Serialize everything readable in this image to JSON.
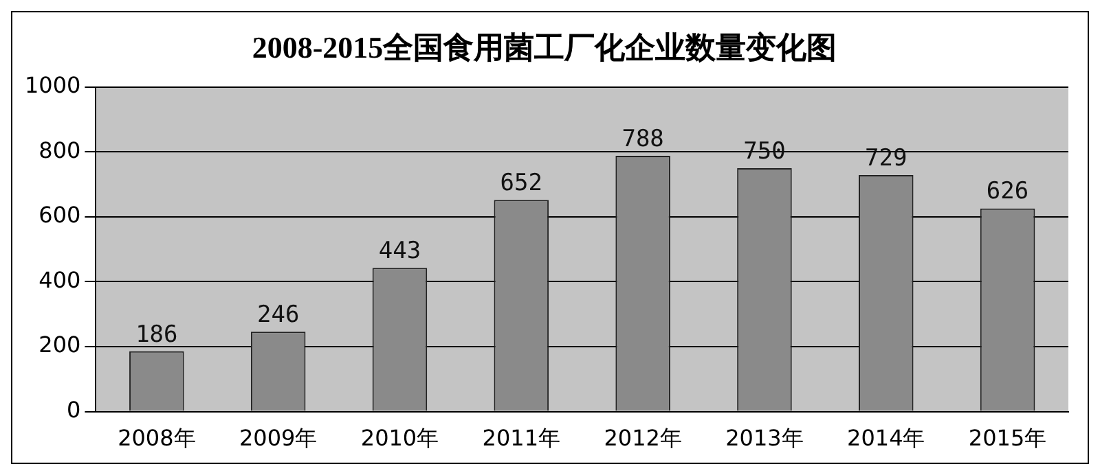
{
  "chart_data": {
    "type": "bar",
    "title": "2008-2015全国食用菌工厂化企业数量变化图",
    "categories": [
      "2008年",
      "2009年",
      "2010年",
      "2011年",
      "2012年",
      "2013年",
      "2014年",
      "2015年"
    ],
    "values": [
      186,
      246,
      443,
      652,
      788,
      750,
      729,
      626
    ],
    "color": "#8a8a8a",
    "ylim": [
      0,
      1000
    ],
    "yticks": [
      0,
      200,
      400,
      600,
      800,
      1000
    ],
    "grid": "y",
    "data_labels": true,
    "legend": false
  }
}
